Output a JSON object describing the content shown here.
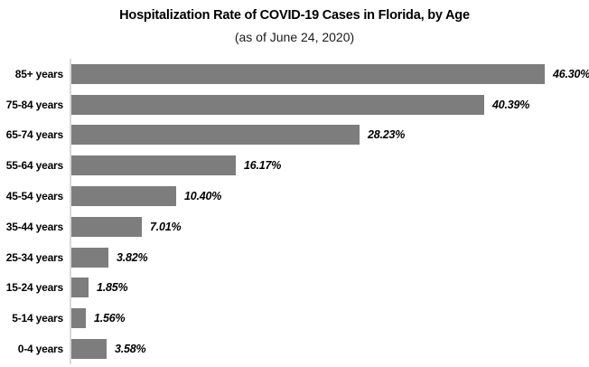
{
  "chart_data": {
    "type": "bar",
    "orientation": "horizontal",
    "title": "Hospitalization Rate of COVID-19 Cases in Florida, by Age",
    "subtitle": "(as of June 24, 2020)",
    "categories": [
      "85+ years",
      "75-84 years",
      "65-74 years",
      "55-64 years",
      "45-54 years",
      "35-44 years",
      "25-34 years",
      "15-24 years",
      "5-14 years",
      "0-4 years"
    ],
    "values": [
      46.3,
      40.39,
      28.23,
      16.17,
      10.4,
      7.01,
      3.82,
      1.85,
      1.56,
      3.58
    ],
    "value_labels": [
      "46.30%",
      "40.39%",
      "28.23%",
      "16.17%",
      "10.40%",
      "7.01%",
      "3.82%",
      "1.85%",
      "1.56%",
      "3.58%"
    ],
    "xlabel": "",
    "ylabel": "",
    "xlim": [
      0,
      50
    ],
    "grid": "off",
    "legend": "none",
    "bar_color": "#7d7d7d",
    "axis_line_color": "#d9d9d9",
    "title_color": "#000000",
    "background_color": "#ffffff"
  }
}
